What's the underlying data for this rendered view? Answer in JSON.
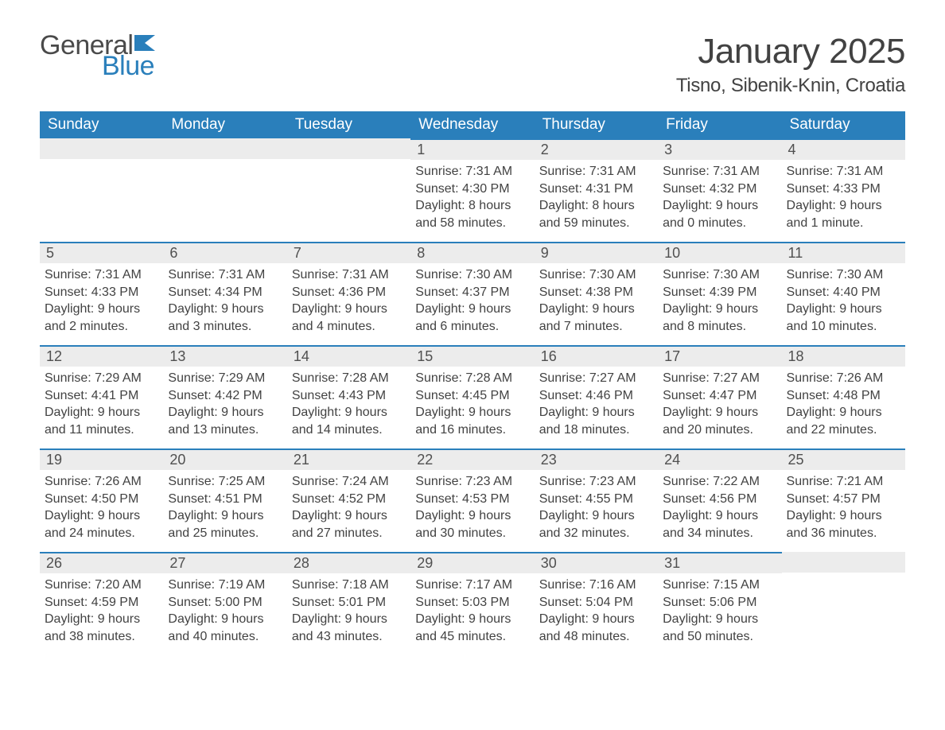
{
  "brand": {
    "word1": "General",
    "word2": "Blue",
    "flag_color": "#2a7fbb",
    "text_gray": "#4a4a4a"
  },
  "title": "January 2025",
  "location": "Tisno, Sibenik-Knin, Croatia",
  "colors": {
    "header_bg": "#2a7fbb",
    "header_text": "#ffffff",
    "daynum_bg": "#ececec",
    "divider": "#2a7fbb",
    "body_text": "#424242"
  },
  "weekdays": [
    "Sunday",
    "Monday",
    "Tuesday",
    "Wednesday",
    "Thursday",
    "Friday",
    "Saturday"
  ],
  "weeks": [
    [
      null,
      null,
      null,
      {
        "n": "1",
        "sunrise": "Sunrise: 7:31 AM",
        "sunset": "Sunset: 4:30 PM",
        "daylight": "Daylight: 8 hours and 58 minutes."
      },
      {
        "n": "2",
        "sunrise": "Sunrise: 7:31 AM",
        "sunset": "Sunset: 4:31 PM",
        "daylight": "Daylight: 8 hours and 59 minutes."
      },
      {
        "n": "3",
        "sunrise": "Sunrise: 7:31 AM",
        "sunset": "Sunset: 4:32 PM",
        "daylight": "Daylight: 9 hours and 0 minutes."
      },
      {
        "n": "4",
        "sunrise": "Sunrise: 7:31 AM",
        "sunset": "Sunset: 4:33 PM",
        "daylight": "Daylight: 9 hours and 1 minute."
      }
    ],
    [
      {
        "n": "5",
        "sunrise": "Sunrise: 7:31 AM",
        "sunset": "Sunset: 4:33 PM",
        "daylight": "Daylight: 9 hours and 2 minutes."
      },
      {
        "n": "6",
        "sunrise": "Sunrise: 7:31 AM",
        "sunset": "Sunset: 4:34 PM",
        "daylight": "Daylight: 9 hours and 3 minutes."
      },
      {
        "n": "7",
        "sunrise": "Sunrise: 7:31 AM",
        "sunset": "Sunset: 4:36 PM",
        "daylight": "Daylight: 9 hours and 4 minutes."
      },
      {
        "n": "8",
        "sunrise": "Sunrise: 7:30 AM",
        "sunset": "Sunset: 4:37 PM",
        "daylight": "Daylight: 9 hours and 6 minutes."
      },
      {
        "n": "9",
        "sunrise": "Sunrise: 7:30 AM",
        "sunset": "Sunset: 4:38 PM",
        "daylight": "Daylight: 9 hours and 7 minutes."
      },
      {
        "n": "10",
        "sunrise": "Sunrise: 7:30 AM",
        "sunset": "Sunset: 4:39 PM",
        "daylight": "Daylight: 9 hours and 8 minutes."
      },
      {
        "n": "11",
        "sunrise": "Sunrise: 7:30 AM",
        "sunset": "Sunset: 4:40 PM",
        "daylight": "Daylight: 9 hours and 10 minutes."
      }
    ],
    [
      {
        "n": "12",
        "sunrise": "Sunrise: 7:29 AM",
        "sunset": "Sunset: 4:41 PM",
        "daylight": "Daylight: 9 hours and 11 minutes."
      },
      {
        "n": "13",
        "sunrise": "Sunrise: 7:29 AM",
        "sunset": "Sunset: 4:42 PM",
        "daylight": "Daylight: 9 hours and 13 minutes."
      },
      {
        "n": "14",
        "sunrise": "Sunrise: 7:28 AM",
        "sunset": "Sunset: 4:43 PM",
        "daylight": "Daylight: 9 hours and 14 minutes."
      },
      {
        "n": "15",
        "sunrise": "Sunrise: 7:28 AM",
        "sunset": "Sunset: 4:45 PM",
        "daylight": "Daylight: 9 hours and 16 minutes."
      },
      {
        "n": "16",
        "sunrise": "Sunrise: 7:27 AM",
        "sunset": "Sunset: 4:46 PM",
        "daylight": "Daylight: 9 hours and 18 minutes."
      },
      {
        "n": "17",
        "sunrise": "Sunrise: 7:27 AM",
        "sunset": "Sunset: 4:47 PM",
        "daylight": "Daylight: 9 hours and 20 minutes."
      },
      {
        "n": "18",
        "sunrise": "Sunrise: 7:26 AM",
        "sunset": "Sunset: 4:48 PM",
        "daylight": "Daylight: 9 hours and 22 minutes."
      }
    ],
    [
      {
        "n": "19",
        "sunrise": "Sunrise: 7:26 AM",
        "sunset": "Sunset: 4:50 PM",
        "daylight": "Daylight: 9 hours and 24 minutes."
      },
      {
        "n": "20",
        "sunrise": "Sunrise: 7:25 AM",
        "sunset": "Sunset: 4:51 PM",
        "daylight": "Daylight: 9 hours and 25 minutes."
      },
      {
        "n": "21",
        "sunrise": "Sunrise: 7:24 AM",
        "sunset": "Sunset: 4:52 PM",
        "daylight": "Daylight: 9 hours and 27 minutes."
      },
      {
        "n": "22",
        "sunrise": "Sunrise: 7:23 AM",
        "sunset": "Sunset: 4:53 PM",
        "daylight": "Daylight: 9 hours and 30 minutes."
      },
      {
        "n": "23",
        "sunrise": "Sunrise: 7:23 AM",
        "sunset": "Sunset: 4:55 PM",
        "daylight": "Daylight: 9 hours and 32 minutes."
      },
      {
        "n": "24",
        "sunrise": "Sunrise: 7:22 AM",
        "sunset": "Sunset: 4:56 PM",
        "daylight": "Daylight: 9 hours and 34 minutes."
      },
      {
        "n": "25",
        "sunrise": "Sunrise: 7:21 AM",
        "sunset": "Sunset: 4:57 PM",
        "daylight": "Daylight: 9 hours and 36 minutes."
      }
    ],
    [
      {
        "n": "26",
        "sunrise": "Sunrise: 7:20 AM",
        "sunset": "Sunset: 4:59 PM",
        "daylight": "Daylight: 9 hours and 38 minutes."
      },
      {
        "n": "27",
        "sunrise": "Sunrise: 7:19 AM",
        "sunset": "Sunset: 5:00 PM",
        "daylight": "Daylight: 9 hours and 40 minutes."
      },
      {
        "n": "28",
        "sunrise": "Sunrise: 7:18 AM",
        "sunset": "Sunset: 5:01 PM",
        "daylight": "Daylight: 9 hours and 43 minutes."
      },
      {
        "n": "29",
        "sunrise": "Sunrise: 7:17 AM",
        "sunset": "Sunset: 5:03 PM",
        "daylight": "Daylight: 9 hours and 45 minutes."
      },
      {
        "n": "30",
        "sunrise": "Sunrise: 7:16 AM",
        "sunset": "Sunset: 5:04 PM",
        "daylight": "Daylight: 9 hours and 48 minutes."
      },
      {
        "n": "31",
        "sunrise": "Sunrise: 7:15 AM",
        "sunset": "Sunset: 5:06 PM",
        "daylight": "Daylight: 9 hours and 50 minutes."
      },
      null
    ]
  ]
}
